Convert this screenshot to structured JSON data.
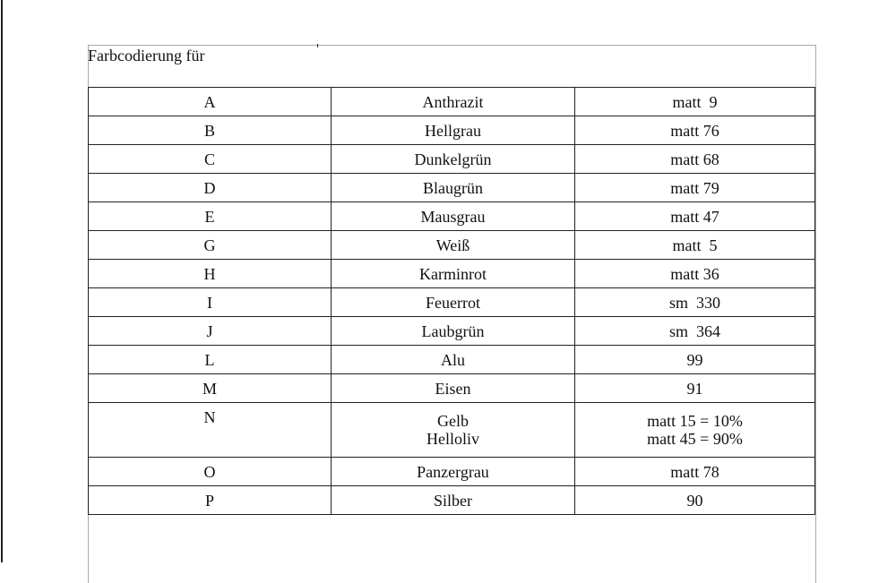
{
  "document": {
    "caption": "Farbcodierung für",
    "rows": [
      {
        "code": "A",
        "color": [
          "Anthrazit"
        ],
        "value": [
          "matt  9"
        ]
      },
      {
        "code": "B",
        "color": [
          "Hellgrau"
        ],
        "value": [
          "matt 76"
        ]
      },
      {
        "code": "C",
        "color": [
          "Dunkelgrün"
        ],
        "value": [
          "matt 68"
        ]
      },
      {
        "code": "D",
        "color": [
          "Blaugrün"
        ],
        "value": [
          "matt 79"
        ]
      },
      {
        "code": "E",
        "color": [
          "Mausgrau"
        ],
        "value": [
          "matt 47"
        ]
      },
      {
        "code": "G",
        "color": [
          "Weiß"
        ],
        "value": [
          "matt  5"
        ]
      },
      {
        "code": "H",
        "color": [
          "Karminrot"
        ],
        "value": [
          "matt 36"
        ]
      },
      {
        "code": "I",
        "color": [
          "Feuerrot"
        ],
        "value": [
          "sm  330"
        ]
      },
      {
        "code": "J",
        "color": [
          "Laubgrün"
        ],
        "value": [
          "sm  364"
        ]
      },
      {
        "code": "L",
        "color": [
          "Alu"
        ],
        "value": [
          "99"
        ]
      },
      {
        "code": "M",
        "color": [
          "Eisen"
        ],
        "value": [
          "91"
        ]
      },
      {
        "code": "N",
        "color": [
          "Gelb",
          "Helloliv"
        ],
        "value": [
          "matt 15 = 10%",
          "matt 45 = 90%"
        ]
      },
      {
        "code": "O",
        "color": [
          "Panzergrau"
        ],
        "value": [
          "matt 78"
        ]
      },
      {
        "code": "P",
        "color": [
          "Silber"
        ],
        "value": [
          "90"
        ]
      }
    ]
  }
}
